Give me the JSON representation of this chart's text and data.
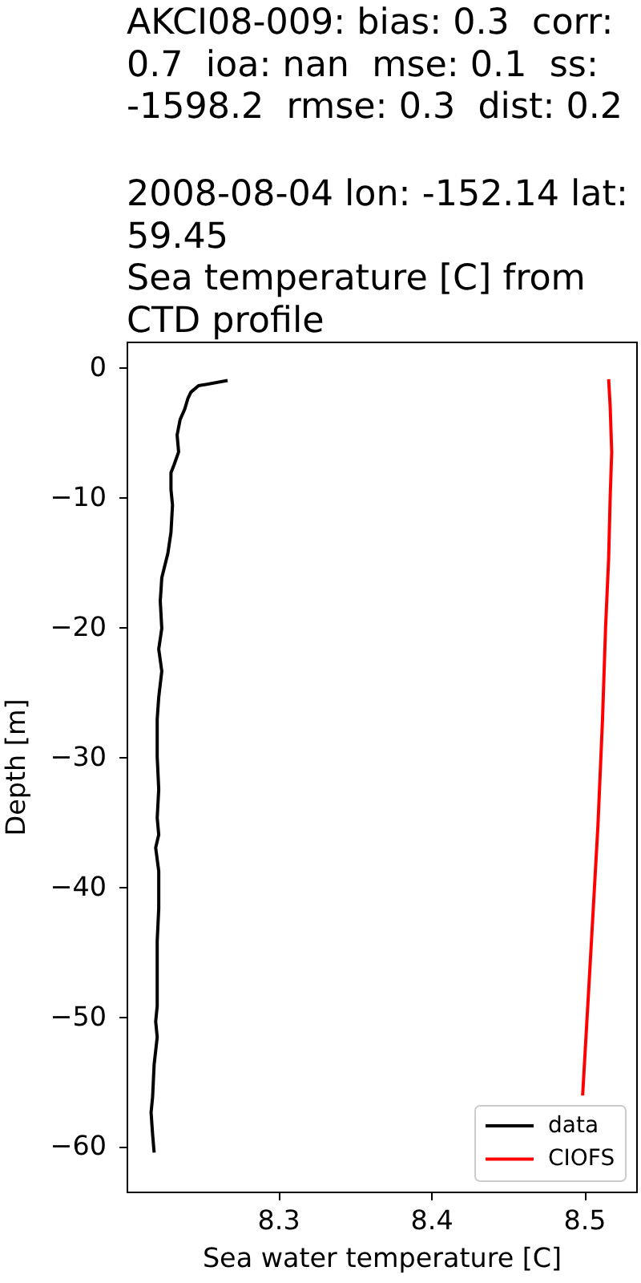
{
  "chart_data": {
    "type": "line",
    "title": "AKCI08-009: bias: 0.3  corr:\n0.7  ioa: nan  mse: 0.1  ss:\n-1598.2  rmse: 0.3  dist: 0.2\n\n2008-08-04 lon: -152.14 lat:\n59.45\nSea temperature [C] from\nCTD profile",
    "xlabel": "Sea water temperature [C]",
    "ylabel": "Depth [m]",
    "xlim": [
      8.201,
      8.534
    ],
    "ylim": [
      -63.5,
      2
    ],
    "xticks": [
      8.3,
      8.4,
      8.5
    ],
    "yticks": [
      -60,
      -50,
      -40,
      -30,
      -20,
      -10,
      0
    ],
    "legend": "bottom right",
    "series": [
      {
        "name": "data",
        "color": "#000000",
        "x": [
          8.267,
          8.248,
          8.243,
          8.241,
          8.239,
          8.236,
          8.234,
          8.235,
          8.232,
          8.23,
          8.23,
          8.231,
          8.23,
          8.228,
          8.224,
          8.223,
          8.224,
          8.222,
          8.224,
          8.222,
          8.221,
          8.221,
          8.222,
          8.221,
          8.222,
          8.22,
          8.222,
          8.222,
          8.221,
          8.221,
          8.221,
          8.22,
          8.221,
          8.219,
          8.218,
          8.217,
          8.218,
          8.219
        ],
        "values": [
          -1.0,
          -1.4,
          -1.9,
          -2.4,
          -3.2,
          -4.0,
          -5.2,
          -6.5,
          -7.5,
          -8.1,
          -9.4,
          -10.6,
          -12.7,
          -14.3,
          -16.2,
          -18.0,
          -20.1,
          -21.7,
          -23.4,
          -25.4,
          -27.1,
          -30.0,
          -32.5,
          -34.7,
          -36.0,
          -37.0,
          -38.8,
          -41.7,
          -44.2,
          -46.7,
          -49.2,
          -50.4,
          -51.6,
          -53.7,
          -56.2,
          -57.4,
          -59.1,
          -60.5
        ]
      },
      {
        "name": "CIOFS",
        "color": "#ff0000",
        "x": [
          8.516,
          8.517,
          8.518,
          8.517,
          8.516,
          8.514,
          8.512,
          8.509,
          8.504,
          8.499
        ],
        "values": [
          -0.9,
          -3.0,
          -6.5,
          -10.0,
          -14.7,
          -20.0,
          -27.1,
          -35.3,
          -45.8,
          -56.1
        ]
      }
    ]
  }
}
